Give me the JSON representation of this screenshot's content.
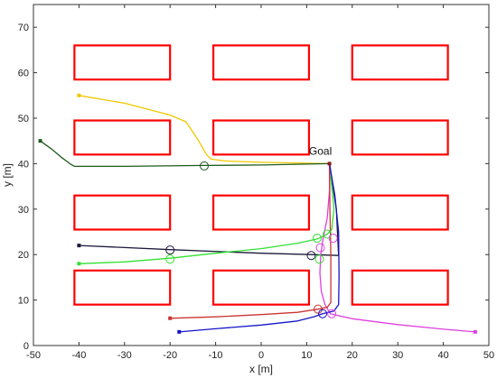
{
  "chart_data": {
    "type": "line",
    "title": "",
    "xlabel": "x [m]",
    "ylabel": "y [m]",
    "xlim": [
      -50,
      50
    ],
    "ylim": [
      0,
      75
    ],
    "x_ticks": [
      -50,
      -40,
      -30,
      -20,
      -10,
      0,
      10,
      20,
      30,
      40,
      50
    ],
    "y_ticks": [
      0,
      10,
      20,
      30,
      40,
      50,
      60,
      70
    ],
    "grid": false,
    "legend": "none",
    "goal": {
      "label": "Goal",
      "x": 15,
      "y": 40,
      "color": "#8b1a1a"
    },
    "obstacles": {
      "color": "#ff0000",
      "rects": [
        {
          "x0": -41,
          "x1": -20,
          "y0": 58.5,
          "y1": 66
        },
        {
          "x0": -10.5,
          "x1": 10.5,
          "y0": 58.5,
          "y1": 66
        },
        {
          "x0": 20,
          "x1": 41,
          "y0": 58.5,
          "y1": 66
        },
        {
          "x0": -41,
          "x1": -20,
          "y0": 42,
          "y1": 49.5
        },
        {
          "x0": -10.5,
          "x1": 10.5,
          "y0": 42,
          "y1": 49.5
        },
        {
          "x0": 20,
          "x1": 41,
          "y0": 42,
          "y1": 49.5
        },
        {
          "x0": -41,
          "x1": -20,
          "y0": 25.5,
          "y1": 33
        },
        {
          "x0": -10.5,
          "x1": 10.5,
          "y0": 25.5,
          "y1": 33
        },
        {
          "x0": 20,
          "x1": 41,
          "y0": 25.5,
          "y1": 33
        },
        {
          "x0": -41,
          "x1": -20,
          "y0": 9,
          "y1": 16.5
        },
        {
          "x0": -10.5,
          "x1": 10.5,
          "y0": 9,
          "y1": 16.5
        },
        {
          "x0": 20,
          "x1": 41,
          "y0": 9,
          "y1": 16.5
        }
      ]
    },
    "series": [
      {
        "color": "#f0c800",
        "x": [
          -40,
          -30,
          -20,
          -16.5,
          -14,
          -12,
          -11,
          -8,
          0,
          15
        ],
        "y": [
          55,
          53.3,
          50.7,
          49.2,
          45.5,
          42,
          41,
          40.6,
          40.3,
          40
        ],
        "markers": [],
        "start_marker": true
      },
      {
        "color": "#1f5a1f",
        "x": [
          -48.5,
          -46,
          -44,
          -42,
          -41,
          -30,
          -12.5,
          0,
          15
        ],
        "y": [
          45,
          43.2,
          41.5,
          40,
          39.4,
          39.4,
          39.6,
          39.7,
          40
        ],
        "markers": [
          {
            "x": -12.5,
            "y": 39.5
          }
        ],
        "start_marker": true
      },
      {
        "color": "#1a1a3a",
        "x": [
          -40,
          -20,
          0,
          11,
          14,
          17
        ],
        "y": [
          22,
          21.1,
          20.3,
          20,
          19.9,
          19.8
        ],
        "markers": [
          {
            "x": -20,
            "y": 21
          },
          {
            "x": 11,
            "y": 19.8
          }
        ],
        "start_marker": true,
        "overlay_segment": {
          "x": [
            17,
            16.5,
            15
          ],
          "y": [
            19.8,
            30,
            40
          ]
        }
      },
      {
        "color": "#33e033",
        "x": [
          -40,
          -30,
          -20,
          -10,
          0,
          8,
          12.5,
          14.5,
          15.5,
          16,
          15.5,
          15
        ],
        "y": [
          18,
          18.4,
          19.2,
          20.3,
          21.3,
          22.5,
          23.5,
          24.5,
          25.5,
          30,
          35,
          40
        ],
        "markers": [
          {
            "x": -20,
            "y": 19
          },
          {
            "x": 12.3,
            "y": 23.6
          },
          {
            "x": 14.5,
            "y": 24.5
          },
          {
            "x": 12.8,
            "y": 19
          }
        ],
        "start_marker": true
      },
      {
        "color": "#e040e0",
        "x": [
          47,
          40,
          30,
          20,
          16,
          15.2,
          14,
          13.2,
          12.9,
          13.1,
          13.6,
          14.5,
          15,
          15
        ],
        "y": [
          3,
          3.6,
          4.6,
          5.9,
          6.8,
          7,
          9,
          12,
          16,
          20,
          23.5,
          28,
          34,
          40
        ],
        "markers": [
          {
            "x": 15.5,
            "y": 7
          },
          {
            "x": 13,
            "y": 21.5
          },
          {
            "x": 15.8,
            "y": 23.6
          }
        ],
        "start_marker": true
      },
      {
        "color": "#cc3333",
        "x": [
          -20,
          -10,
          0,
          8,
          12.5,
          14.5,
          15.3,
          15.3,
          15.1,
          15
        ],
        "y": [
          6,
          6.3,
          6.8,
          7.3,
          8,
          8.4,
          9.5,
          20,
          30,
          40
        ],
        "markers": [
          {
            "x": 12.5,
            "y": 8
          }
        ],
        "start_marker": true
      },
      {
        "color": "#1515c8",
        "x": [
          -18,
          -10,
          0,
          8,
          11.5,
          13.5,
          16,
          17,
          17.1,
          17,
          16.2,
          15
        ],
        "y": [
          3,
          3.7,
          4.5,
          5.4,
          6.3,
          7,
          7.6,
          9,
          15,
          25,
          33,
          40
        ],
        "markers": [
          {
            "x": 13.5,
            "y": 7
          }
        ],
        "start_marker": true
      }
    ]
  }
}
